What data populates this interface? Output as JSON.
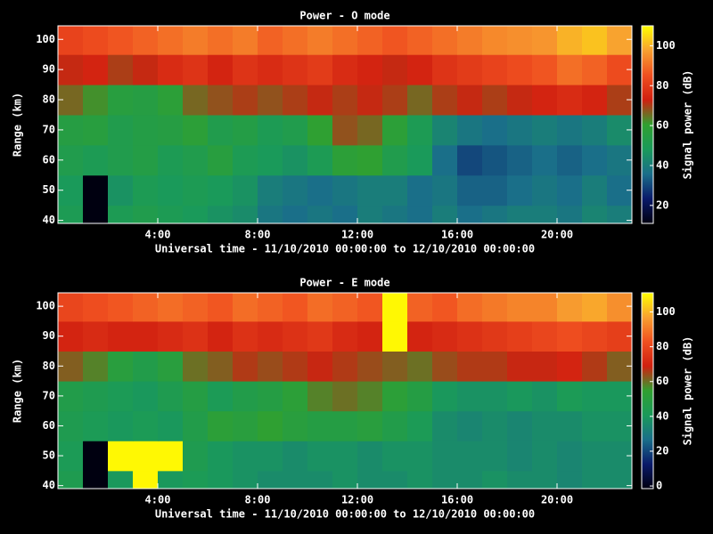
{
  "chart_data": [
    {
      "type": "heatmap",
      "title": "Power - O mode",
      "xlabel": "Universal time - 11/10/2010 00:00:00 to 12/10/2010 00:00:00",
      "ylabel": "Range (km)",
      "colorbar_label": "Signal power (dB)",
      "x_bins": [
        0,
        1,
        2,
        3,
        4,
        5,
        6,
        7,
        8,
        9,
        10,
        11,
        12,
        13,
        14,
        15,
        16,
        17,
        18,
        19,
        20,
        21,
        22,
        23
      ],
      "y_bins": [
        39,
        45,
        55,
        65,
        75,
        85,
        95,
        104.5
      ],
      "z": [
        [
          50,
          11,
          50,
          52,
          50,
          48,
          46,
          44,
          38,
          36,
          38,
          36,
          40,
          38,
          36,
          40,
          36,
          38,
          40,
          40,
          38,
          42,
          40
        ],
        [
          48,
          11,
          46,
          50,
          48,
          50,
          48,
          46,
          40,
          38,
          36,
          38,
          40,
          40,
          36,
          38,
          34,
          34,
          36,
          38,
          36,
          40,
          36
        ],
        [
          52,
          50,
          52,
          54,
          50,
          52,
          56,
          50,
          48,
          46,
          50,
          58,
          60,
          52,
          48,
          36,
          30,
          32,
          34,
          36,
          34,
          36,
          38
        ],
        [
          55,
          56,
          52,
          54,
          55,
          58,
          52,
          54,
          50,
          52,
          60,
          68,
          66,
          58,
          50,
          42,
          38,
          36,
          38,
          40,
          38,
          40,
          44
        ],
        [
          66,
          62,
          56,
          55,
          58,
          66,
          68,
          70,
          68,
          70,
          72,
          70,
          72,
          70,
          66,
          70,
          72,
          70,
          72,
          74,
          76,
          74,
          70
        ],
        [
          72,
          74,
          70,
          72,
          76,
          78,
          74,
          78,
          76,
          78,
          80,
          76,
          74,
          72,
          74,
          78,
          80,
          82,
          84,
          86,
          90,
          88,
          84
        ],
        [
          82,
          84,
          86,
          88,
          90,
          92,
          90,
          92,
          88,
          90,
          92,
          90,
          88,
          86,
          88,
          90,
          92,
          94,
          95,
          96,
          100,
          102,
          98
        ]
      ],
      "xlim": [
        0,
        23
      ],
      "ylim": [
        39,
        104.5
      ],
      "xticks": [
        {
          "value": 4,
          "label": "4:00"
        },
        {
          "value": 8,
          "label": "8:00"
        },
        {
          "value": 12,
          "label": "12:00"
        },
        {
          "value": 16,
          "label": "16:00"
        },
        {
          "value": 20,
          "label": "20:00"
        }
      ],
      "yticks": [
        40,
        50,
        60,
        70,
        80,
        90,
        100
      ],
      "clim": [
        11,
        110
      ],
      "cticks": [
        20,
        40,
        60,
        80,
        100
      ],
      "colormap": [
        "#000010",
        "#0a1a6a",
        "#1a6e8a",
        "#1a9a5a",
        "#30a030",
        "#d02010",
        "#f05020",
        "#f8a030",
        "#ffff00"
      ]
    },
    {
      "type": "heatmap",
      "title": "Power - E mode",
      "xlabel": "Universal time - 11/10/2010 00:00:00 to 12/10/2010 00:00:00",
      "ylabel": "Range (km)",
      "colorbar_label": "Signal power (dB)",
      "x_bins": [
        0,
        1,
        2,
        3,
        4,
        5,
        6,
        7,
        8,
        9,
        10,
        11,
        12,
        13,
        14,
        15,
        16,
        17,
        18,
        19,
        20,
        21,
        22,
        23
      ],
      "y_bins": [
        39,
        45,
        55,
        65,
        75,
        85,
        95,
        104.5
      ],
      "z": [
        [
          44,
          -1.5,
          40,
          110,
          40,
          42,
          40,
          38,
          36,
          36,
          36,
          38,
          36,
          36,
          38,
          36,
          36,
          38,
          36,
          36,
          34,
          36,
          36
        ],
        [
          42,
          -1.5,
          110,
          110,
          110,
          44,
          40,
          38,
          38,
          36,
          38,
          38,
          36,
          38,
          38,
          36,
          36,
          36,
          34,
          36,
          34,
          36,
          36
        ],
        [
          44,
          42,
          40,
          42,
          40,
          46,
          52,
          50,
          54,
          50,
          48,
          48,
          50,
          46,
          42,
          36,
          34,
          36,
          34,
          36,
          36,
          38,
          38
        ],
        [
          46,
          44,
          42,
          40,
          44,
          48,
          42,
          46,
          48,
          52,
          58,
          60,
          58,
          52,
          48,
          40,
          38,
          38,
          40,
          38,
          42,
          40,
          40
        ],
        [
          62,
          58,
          50,
          46,
          50,
          60,
          62,
          66,
          64,
          66,
          68,
          66,
          64,
          62,
          60,
          64,
          66,
          66,
          68,
          68,
          70,
          66,
          62
        ],
        [
          70,
          72,
          70,
          70,
          72,
          74,
          70,
          74,
          72,
          74,
          76,
          72,
          70,
          110,
          70,
          72,
          74,
          76,
          78,
          80,
          82,
          80,
          78
        ],
        [
          80,
          82,
          84,
          86,
          88,
          86,
          84,
          88,
          86,
          84,
          88,
          86,
          84,
          110,
          86,
          84,
          88,
          90,
          92,
          92,
          96,
          98,
          94
        ]
      ],
      "xlim": [
        0,
        23
      ],
      "ylim": [
        39,
        104.5
      ],
      "xticks": [
        {
          "value": 4,
          "label": "4:00"
        },
        {
          "value": 8,
          "label": "8:00"
        },
        {
          "value": 12,
          "label": "12:00"
        },
        {
          "value": 16,
          "label": "16:00"
        },
        {
          "value": 20,
          "label": "20:00"
        }
      ],
      "yticks": [
        40,
        50,
        60,
        70,
        80,
        90,
        100
      ],
      "clim": [
        -1.5,
        111
      ],
      "cticks": [
        0,
        20,
        40,
        60,
        80,
        100
      ],
      "colormap": [
        "#000010",
        "#0a1a6a",
        "#1a6e8a",
        "#1a9a5a",
        "#30a030",
        "#d02010",
        "#f05020",
        "#f8a030",
        "#ffff00"
      ]
    }
  ]
}
